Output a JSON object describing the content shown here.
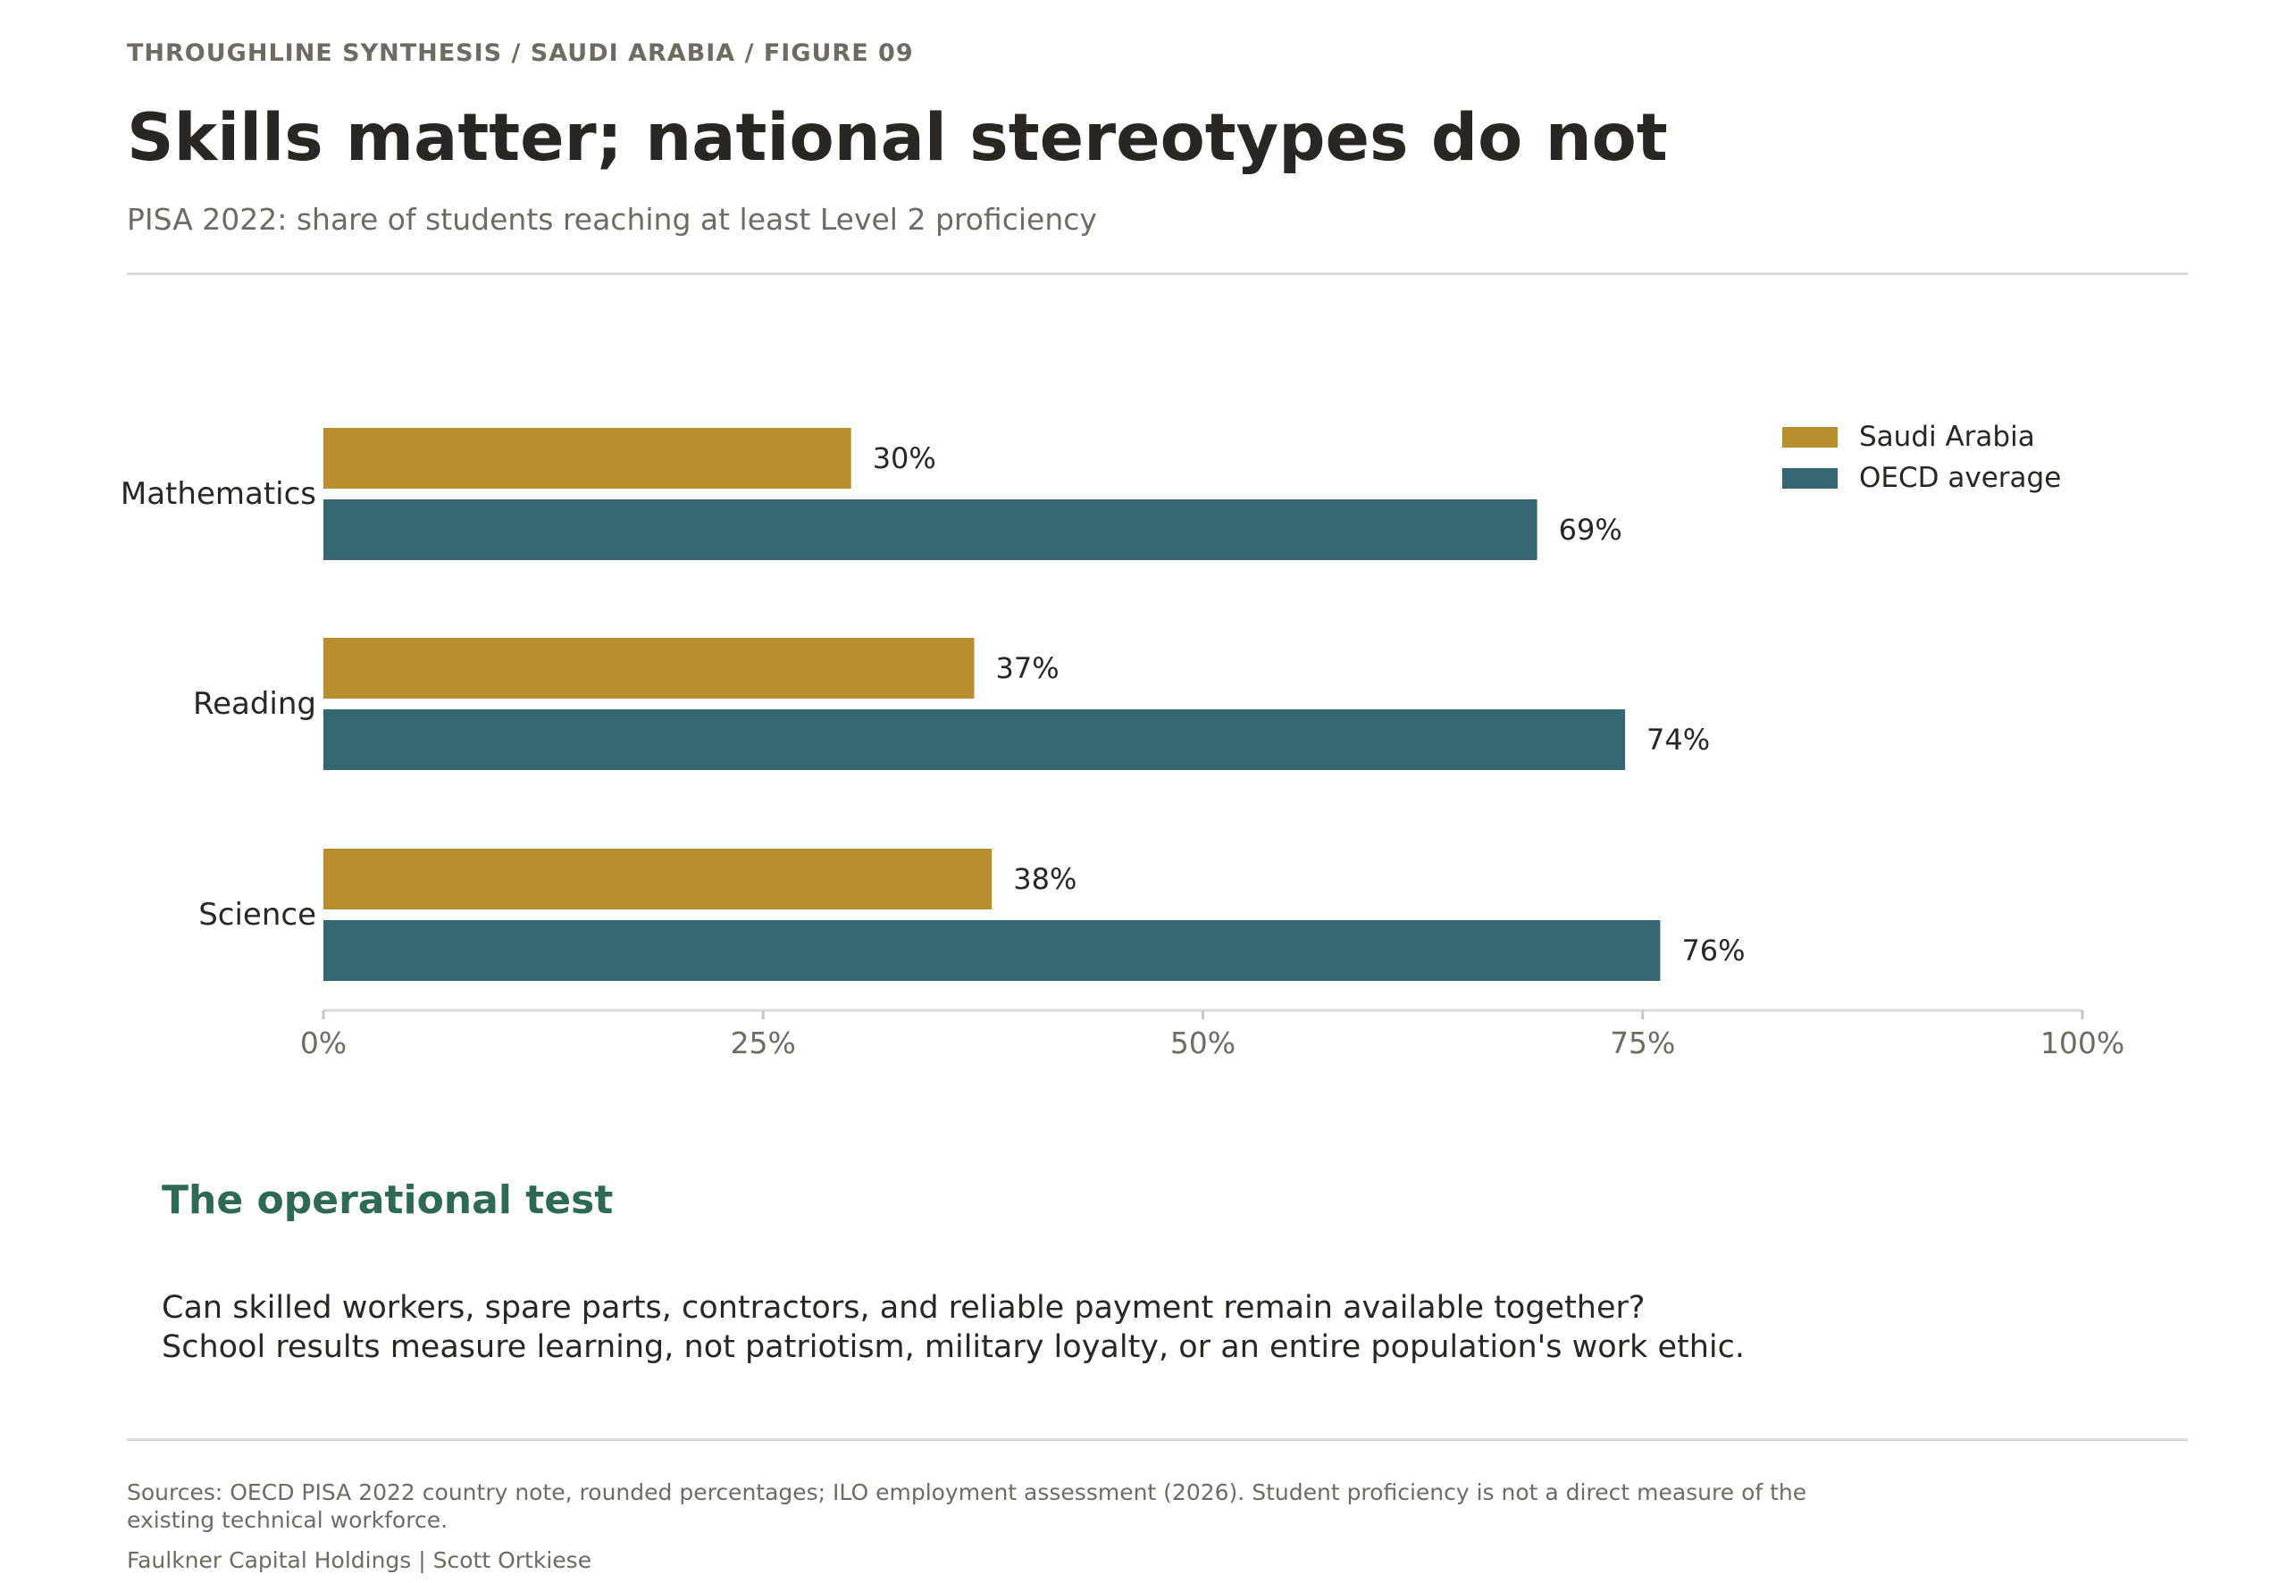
{
  "header": {
    "kicker": "THROUGHLINE SYNTHESIS / SAUDI ARABIA / FIGURE 09",
    "title": "Skills matter; national stereotypes do not",
    "subtitle": "PISA 2022: share of students reaching at least Level 2 proficiency"
  },
  "colors": {
    "saudi": "#b88f2e",
    "oecd": "#356671",
    "section_title": "#2e6a52",
    "rule": "#dcdad4"
  },
  "chart_data": {
    "type": "bar",
    "orientation": "horizontal",
    "categories": [
      "Mathematics",
      "Reading",
      "Science"
    ],
    "series": [
      {
        "name": "Saudi Arabia",
        "values": [
          30,
          37,
          38
        ],
        "labels": [
          "30%",
          "37%",
          "38%"
        ]
      },
      {
        "name": "OECD average",
        "values": [
          69,
          74,
          76
        ],
        "labels": [
          "69%",
          "74%",
          "76%"
        ]
      }
    ],
    "xlim": [
      0,
      100
    ],
    "xticks": [
      0,
      25,
      50,
      75,
      100
    ],
    "xtick_labels": [
      "0%",
      "25%",
      "50%",
      "75%",
      "100%"
    ],
    "grid": false,
    "legend_position": "top-right"
  },
  "section": {
    "title": "The operational test",
    "line1": "Can skilled workers, spare parts, contractors, and reliable payment remain available together?",
    "line2": "School results measure learning, not patriotism, military loyalty, or an entire population's work ethic."
  },
  "footer": {
    "source": "Sources: OECD PISA 2022 country note, rounded percentages; ILO employment assessment (2026). Student proficiency is not a direct measure of the existing technical workforce.",
    "credit": "Faulkner Capital Holdings | Scott Ortkiese"
  }
}
